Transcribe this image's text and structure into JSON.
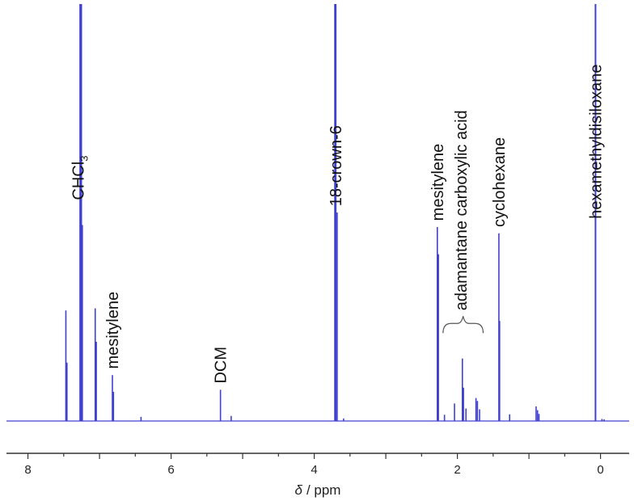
{
  "chart_data": {
    "type": "line",
    "xlabel_symbol": "δ",
    "xlabel_unit": "/ ppm",
    "x_reversed": true,
    "xlim": [
      8.3,
      -0.4
    ],
    "ylim": [
      0,
      100
    ],
    "xticks": [
      8,
      6,
      4,
      2,
      0
    ],
    "grid": false,
    "legend": "none",
    "line_color": "#4040d0",
    "baseline": 0,
    "series": [
      {
        "peaks": [
          {
            "x": 7.47,
            "y": 26.5
          },
          {
            "x": 7.455,
            "y": 14
          },
          {
            "x": 7.27,
            "y": 100
          },
          {
            "x": 7.255,
            "y": 100
          },
          {
            "x": 7.24,
            "y": 47
          },
          {
            "x": 7.06,
            "y": 27
          },
          {
            "x": 7.045,
            "y": 19
          },
          {
            "x": 6.82,
            "y": 11
          },
          {
            "x": 6.805,
            "y": 7
          },
          {
            "x": 6.42,
            "y": 1
          },
          {
            "x": 5.31,
            "y": 7.5
          },
          {
            "x": 5.16,
            "y": 1.2
          },
          {
            "x": 3.71,
            "y": 100
          },
          {
            "x": 3.7,
            "y": 100
          },
          {
            "x": 3.68,
            "y": 50
          },
          {
            "x": 3.59,
            "y": 0.6
          },
          {
            "x": 2.28,
            "y": 46.5
          },
          {
            "x": 2.265,
            "y": 40
          },
          {
            "x": 2.18,
            "y": 1.5
          },
          {
            "x": 2.04,
            "y": 4.2
          },
          {
            "x": 1.93,
            "y": 15
          },
          {
            "x": 1.915,
            "y": 8
          },
          {
            "x": 1.88,
            "y": 3
          },
          {
            "x": 1.74,
            "y": 5.5
          },
          {
            "x": 1.72,
            "y": 4.8
          },
          {
            "x": 1.69,
            "y": 2.8
          },
          {
            "x": 1.42,
            "y": 45
          },
          {
            "x": 1.41,
            "y": 24
          },
          {
            "x": 1.27,
            "y": 1.6
          },
          {
            "x": 0.9,
            "y": 3.5
          },
          {
            "x": 0.88,
            "y": 2.6
          },
          {
            "x": 0.86,
            "y": 1.7
          },
          {
            "x": 0.07,
            "y": 100
          },
          {
            "x": -0.02,
            "y": 0.5
          },
          {
            "x": -0.05,
            "y": 0.4
          }
        ]
      }
    ],
    "annotations": [
      {
        "text": "CHCl",
        "subscript": "3",
        "x": 7.3,
        "y": 53
      },
      {
        "text": "mesitylene",
        "x": 6.82,
        "y": 12.5
      },
      {
        "text": "DCM",
        "x": 5.31,
        "y": 9
      },
      {
        "text": "18-crown-6",
        "x": 3.7,
        "y": 51.5
      },
      {
        "text": "mesitylene",
        "x": 2.275,
        "y": 48
      },
      {
        "text": "adamantane carboxylic acid",
        "x": 1.95,
        "y": 26.5
      },
      {
        "text": "cyclohexane",
        "x": 1.42,
        "y": 46.5
      },
      {
        "text": "hexamethyldisiloxane",
        "x": 0.07,
        "y": 48.5
      }
    ],
    "bracket": {
      "x_from": 2.2,
      "x_to": 1.64,
      "annotation_index": 5
    }
  }
}
